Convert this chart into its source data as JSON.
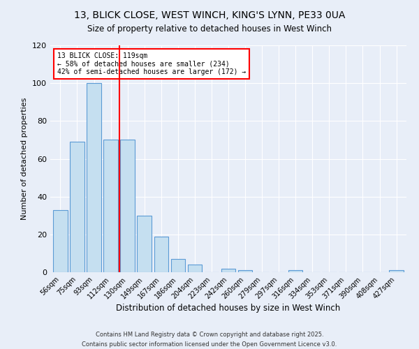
{
  "title": "13, BLICK CLOSE, WEST WINCH, KING'S LYNN, PE33 0UA",
  "subtitle": "Size of property relative to detached houses in West Winch",
  "xlabel": "Distribution of detached houses by size in West Winch",
  "ylabel": "Number of detached properties",
  "bar_labels": [
    "56sqm",
    "75sqm",
    "93sqm",
    "112sqm",
    "130sqm",
    "149sqm",
    "167sqm",
    "186sqm",
    "204sqm",
    "223sqm",
    "242sqm",
    "260sqm",
    "279sqm",
    "297sqm",
    "316sqm",
    "334sqm",
    "353sqm",
    "371sqm",
    "390sqm",
    "408sqm",
    "427sqm"
  ],
  "bar_values": [
    33,
    69,
    100,
    70,
    70,
    30,
    19,
    7,
    4,
    0,
    2,
    1,
    0,
    0,
    1,
    0,
    0,
    0,
    0,
    0,
    1
  ],
  "bar_color": "#c5dff0",
  "bar_edge_color": "#5b9bd5",
  "vline_x_idx": 3.5,
  "vline_color": "red",
  "annotation_title": "13 BLICK CLOSE: 119sqm",
  "annotation_line2": "← 58% of detached houses are smaller (234)",
  "annotation_line3": "42% of semi-detached houses are larger (172) →",
  "annotation_box_color": "#ffffff",
  "annotation_box_edge": "red",
  "ylim": [
    0,
    120
  ],
  "yticks": [
    0,
    20,
    40,
    60,
    80,
    100,
    120
  ],
  "footer1": "Contains HM Land Registry data © Crown copyright and database right 2025.",
  "footer2": "Contains public sector information licensed under the Open Government Licence v3.0.",
  "background_color": "#e8eef8"
}
